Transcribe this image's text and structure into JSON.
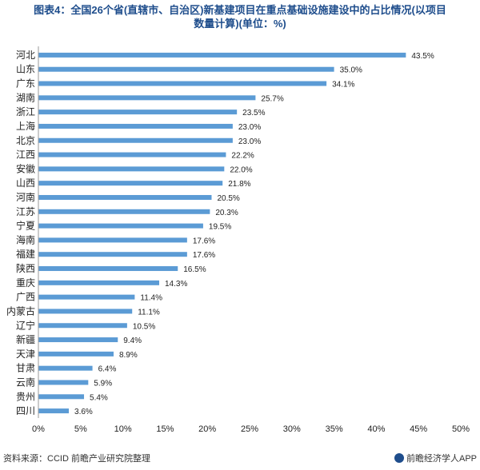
{
  "title": {
    "line1": "图表4：全国26个省(直辖市、自治区)新基建项目在重点基础设施建设中的占比情况(以项目",
    "line2": "数量计算)(单位：%)"
  },
  "footer": {
    "source": "资料来源：CCID 前瞻产业研究院整理",
    "brand": "前瞻经济学人APP"
  },
  "colors": {
    "bar": "#5b9bd5",
    "title": "#1e4d8c"
  },
  "chart_data": {
    "type": "bar",
    "orientation": "horizontal",
    "categories": [
      "河北",
      "山东",
      "广东",
      "湖南",
      "浙江",
      "上海",
      "北京",
      "江西",
      "安徽",
      "山西",
      "河南",
      "江苏",
      "宁夏",
      "海南",
      "福建",
      "陕西",
      "重庆",
      "广西",
      "内蒙古",
      "辽宁",
      "新疆",
      "天津",
      "甘肃",
      "云南",
      "贵州",
      "四川"
    ],
    "values": [
      43.5,
      35.0,
      34.1,
      25.7,
      23.5,
      23.0,
      23.0,
      22.2,
      22.0,
      21.8,
      20.5,
      20.3,
      19.5,
      17.6,
      17.6,
      16.5,
      14.3,
      11.4,
      11.1,
      10.5,
      9.4,
      8.9,
      6.4,
      5.9,
      5.4,
      3.6
    ],
    "value_labels": [
      "43.5%",
      "35.0%",
      "34.1%",
      "25.7%",
      "23.5%",
      "23.0%",
      "23.0%",
      "22.2%",
      "22.0%",
      "21.8%",
      "20.5%",
      "20.3%",
      "19.5%",
      "17.6%",
      "17.6%",
      "16.5%",
      "14.3%",
      "11.4%",
      "11.1%",
      "10.5%",
      "9.4%",
      "8.9%",
      "6.4%",
      "5.9%",
      "5.4%",
      "3.6%"
    ],
    "xlim": [
      0,
      50
    ],
    "xticks": [
      "0%",
      "5%",
      "10%",
      "15%",
      "20%",
      "25%",
      "30%",
      "35%",
      "40%",
      "45%",
      "50%"
    ],
    "grid": false,
    "legend": "none"
  }
}
